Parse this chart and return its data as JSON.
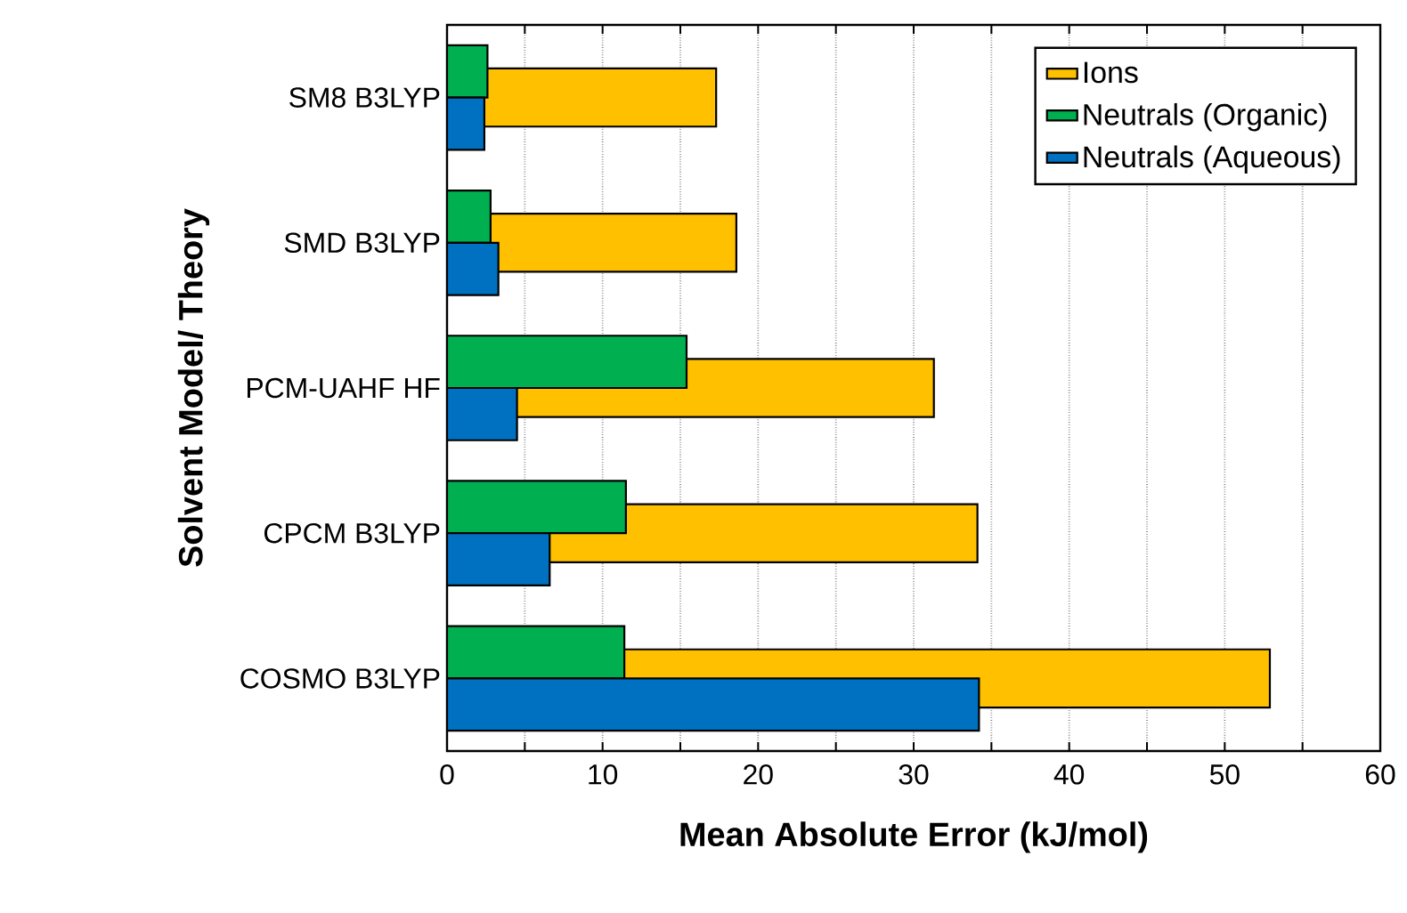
{
  "chart_data": {
    "type": "bar",
    "orientation": "horizontal",
    "xlabel": "Mean Absolute Error (kJ/mol)",
    "ylabel": "Solvent Model/ Theory",
    "categories": [
      "SM8 B3LYP",
      "SMD B3LYP",
      "PCM-UAHF HF",
      "CPCM B3LYP",
      "COSMO B3LYP"
    ],
    "series": [
      {
        "name": "Ions",
        "color": "#ffc000",
        "values": [
          17.3,
          18.6,
          31.3,
          34.1,
          52.9
        ]
      },
      {
        "name": "Neutrals (Organic)",
        "color": "#00b050",
        "values": [
          2.6,
          2.8,
          15.4,
          11.5,
          11.4
        ]
      },
      {
        "name": "Neutrals (Aqueous)",
        "color": "#0070c0",
        "values": [
          2.4,
          3.3,
          4.5,
          6.6,
          34.2
        ]
      }
    ],
    "xlim": [
      0,
      60
    ],
    "xticks": [
      0,
      {
        "value": 5,
        "label": null
      },
      10,
      {
        "value": 15,
        "label": null
      },
      20,
      {
        "value": 25,
        "label": null
      },
      30,
      {
        "value": 35,
        "label": null
      },
      40,
      {
        "value": 45,
        "label": null
      },
      50,
      {
        "value": 55,
        "label": null
      },
      60
    ],
    "grid": "x",
    "legend": "top right"
  }
}
